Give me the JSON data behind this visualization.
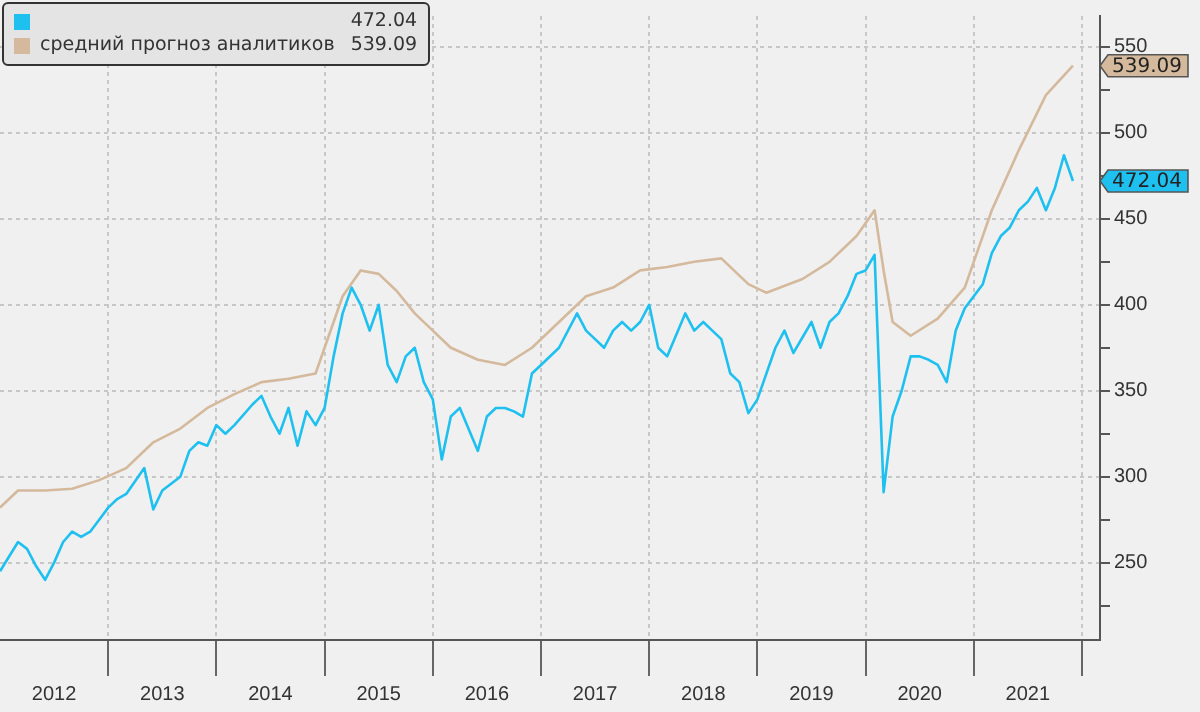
{
  "chart_data": {
    "type": "line",
    "x": [
      "2012-01",
      "2012-03",
      "2012-04",
      "2012-05",
      "2012-06",
      "2012-07",
      "2012-08",
      "2012-09",
      "2012-10",
      "2012-11",
      "2012-12",
      "2013-01",
      "2013-02",
      "2013-03",
      "2013-05",
      "2013-06",
      "2013-07",
      "2013-09",
      "2013-10",
      "2013-11",
      "2013-12",
      "2014-01",
      "2014-02",
      "2014-03",
      "2014-05",
      "2014-06",
      "2014-07",
      "2014-08",
      "2014-09",
      "2014-10",
      "2014-11",
      "2014-12",
      "2015-01",
      "2015-02",
      "2015-03",
      "2015-04",
      "2015-05",
      "2015-06",
      "2015-07",
      "2015-08",
      "2015-09",
      "2015-10",
      "2015-11",
      "2015-12",
      "2016-01",
      "2016-02",
      "2016-03",
      "2016-04",
      "2016-06",
      "2016-07",
      "2016-08",
      "2016-09",
      "2016-10",
      "2016-11",
      "2016-12",
      "2017-01",
      "2017-03",
      "2017-05",
      "2017-06",
      "2017-07",
      "2017-08",
      "2017-09",
      "2017-10",
      "2017-11",
      "2017-12",
      "2018-01",
      "2018-02",
      "2018-03",
      "2018-05",
      "2018-06",
      "2018-07",
      "2018-08",
      "2018-09",
      "2018-10",
      "2018-11",
      "2018-12",
      "2019-01",
      "2019-03",
      "2019-04",
      "2019-05",
      "2019-07",
      "2019-08",
      "2019-09",
      "2019-10",
      "2019-11",
      "2019-12",
      "2020-01",
      "2020-02",
      "2020-03",
      "2020-04",
      "2020-05",
      "2020-06",
      "2020-07",
      "2020-08",
      "2020-09",
      "2020-10",
      "2020-11",
      "2020-12",
      "2021-01",
      "2021-02",
      "2021-03",
      "2021-04",
      "2021-05",
      "2021-06",
      "2021-07",
      "2021-08",
      "2021-09",
      "2021-10",
      "2021-11",
      "2021-12"
    ],
    "series": [
      {
        "color": "#1ec0f0",
        "values": [
          245,
          262,
          258,
          248,
          240,
          250,
          262,
          268,
          265,
          268,
          275,
          282,
          287,
          290,
          305,
          281,
          292,
          300,
          315,
          320,
          318,
          330,
          325,
          330,
          342,
          347,
          335,
          325,
          340,
          318,
          338,
          330,
          340,
          370,
          395,
          410,
          400,
          385,
          400,
          365,
          355,
          370,
          375,
          355,
          345,
          310,
          335,
          340,
          315,
          335,
          340,
          340,
          338,
          335,
          360,
          365,
          375,
          395,
          385,
          380,
          375,
          385,
          390,
          385,
          390,
          400,
          375,
          370,
          395,
          385,
          390,
          385,
          380,
          360,
          355,
          337,
          345,
          375,
          385,
          372,
          390,
          375,
          390,
          395,
          405,
          418,
          420,
          429,
          291,
          335,
          350,
          370,
          370,
          368,
          365,
          355,
          385,
          398,
          405,
          412,
          430,
          440,
          445,
          455,
          460,
          468,
          455,
          468,
          487,
          472.04
        ]
      },
      {
        "name": "средний прогноз аналитиков",
        "color": "#d4b99c",
        "x": [
          "2012-01",
          "2012-03",
          "2012-06",
          "2012-09",
          "2012-12",
          "2013-03",
          "2013-06",
          "2013-09",
          "2013-12",
          "2014-03",
          "2014-06",
          "2014-09",
          "2014-12",
          "2015-01",
          "2015-03",
          "2015-05",
          "2015-07",
          "2015-09",
          "2015-11",
          "2016-01",
          "2016-03",
          "2016-06",
          "2016-09",
          "2016-12",
          "2017-03",
          "2017-06",
          "2017-09",
          "2017-12",
          "2018-03",
          "2018-06",
          "2018-09",
          "2018-12",
          "2019-02",
          "2019-06",
          "2019-09",
          "2019-12",
          "2020-02",
          "2020-03",
          "2020-04",
          "2020-06",
          "2020-09",
          "2020-12",
          "2021-03",
          "2021-06",
          "2021-09",
          "2021-12"
        ],
        "values": [
          282,
          292,
          292,
          293,
          298,
          305,
          320,
          328,
          340,
          348,
          355,
          357,
          360,
          375,
          405,
          420,
          418,
          408,
          395,
          385,
          375,
          368,
          365,
          375,
          390,
          405,
          410,
          420,
          422,
          425,
          427,
          412,
          407,
          415,
          425,
          440,
          455,
          420,
          390,
          382,
          392,
          410,
          455,
          490,
          522,
          539.09
        ]
      }
    ],
    "annotations": [
      {
        "text": "472.04",
        "x": "2021-12",
        "y": 472.04
      },
      {
        "text": "539.09",
        "x": "2021-12",
        "y": 539.09
      }
    ],
    "xlim": [
      "2012-01",
      "2022-03"
    ],
    "xticks": [
      {
        "value": "2012-07",
        "label": "2012"
      },
      {
        "value": "2013-01",
        "label": null
      },
      {
        "value": "2013-07",
        "label": "2013"
      },
      {
        "value": "2014-01",
        "label": null
      },
      {
        "value": "2014-07",
        "label": "2014"
      },
      {
        "value": "2015-01",
        "label": null
      },
      {
        "value": "2015-07",
        "label": "2015"
      },
      {
        "value": "2016-01",
        "label": null
      },
      {
        "value": "2016-07",
        "label": "2016"
      },
      {
        "value": "2017-01",
        "label": null
      },
      {
        "value": "2017-07",
        "label": "2017"
      },
      {
        "value": "2018-01",
        "label": null
      },
      {
        "value": "2018-07",
        "label": "2018"
      },
      {
        "value": "2019-01",
        "label": null
      },
      {
        "value": "2019-07",
        "label": "2019"
      },
      {
        "value": "2020-01",
        "label": null
      },
      {
        "value": "2020-07",
        "label": "2020"
      },
      {
        "value": "2021-01",
        "label": null
      },
      {
        "value": "2021-07",
        "label": "2021"
      },
      {
        "value": "2022-01",
        "label": null
      }
    ],
    "ylim": [
      205,
      568
    ],
    "yticks": [
      {
        "value": 225,
        "label": null
      },
      250,
      {
        "value": 275,
        "label": null
      },
      300,
      {
        "value": 325,
        "label": null
      },
      350,
      {
        "value": 375,
        "label": null
      },
      400,
      {
        "value": 425,
        "label": null
      },
      450,
      {
        "value": 475,
        "label": null
      },
      500,
      {
        "value": 525,
        "label": null
      },
      550
    ],
    "grid": true,
    "legend": "top left",
    "marker": "none",
    "line_style": "solid"
  }
}
